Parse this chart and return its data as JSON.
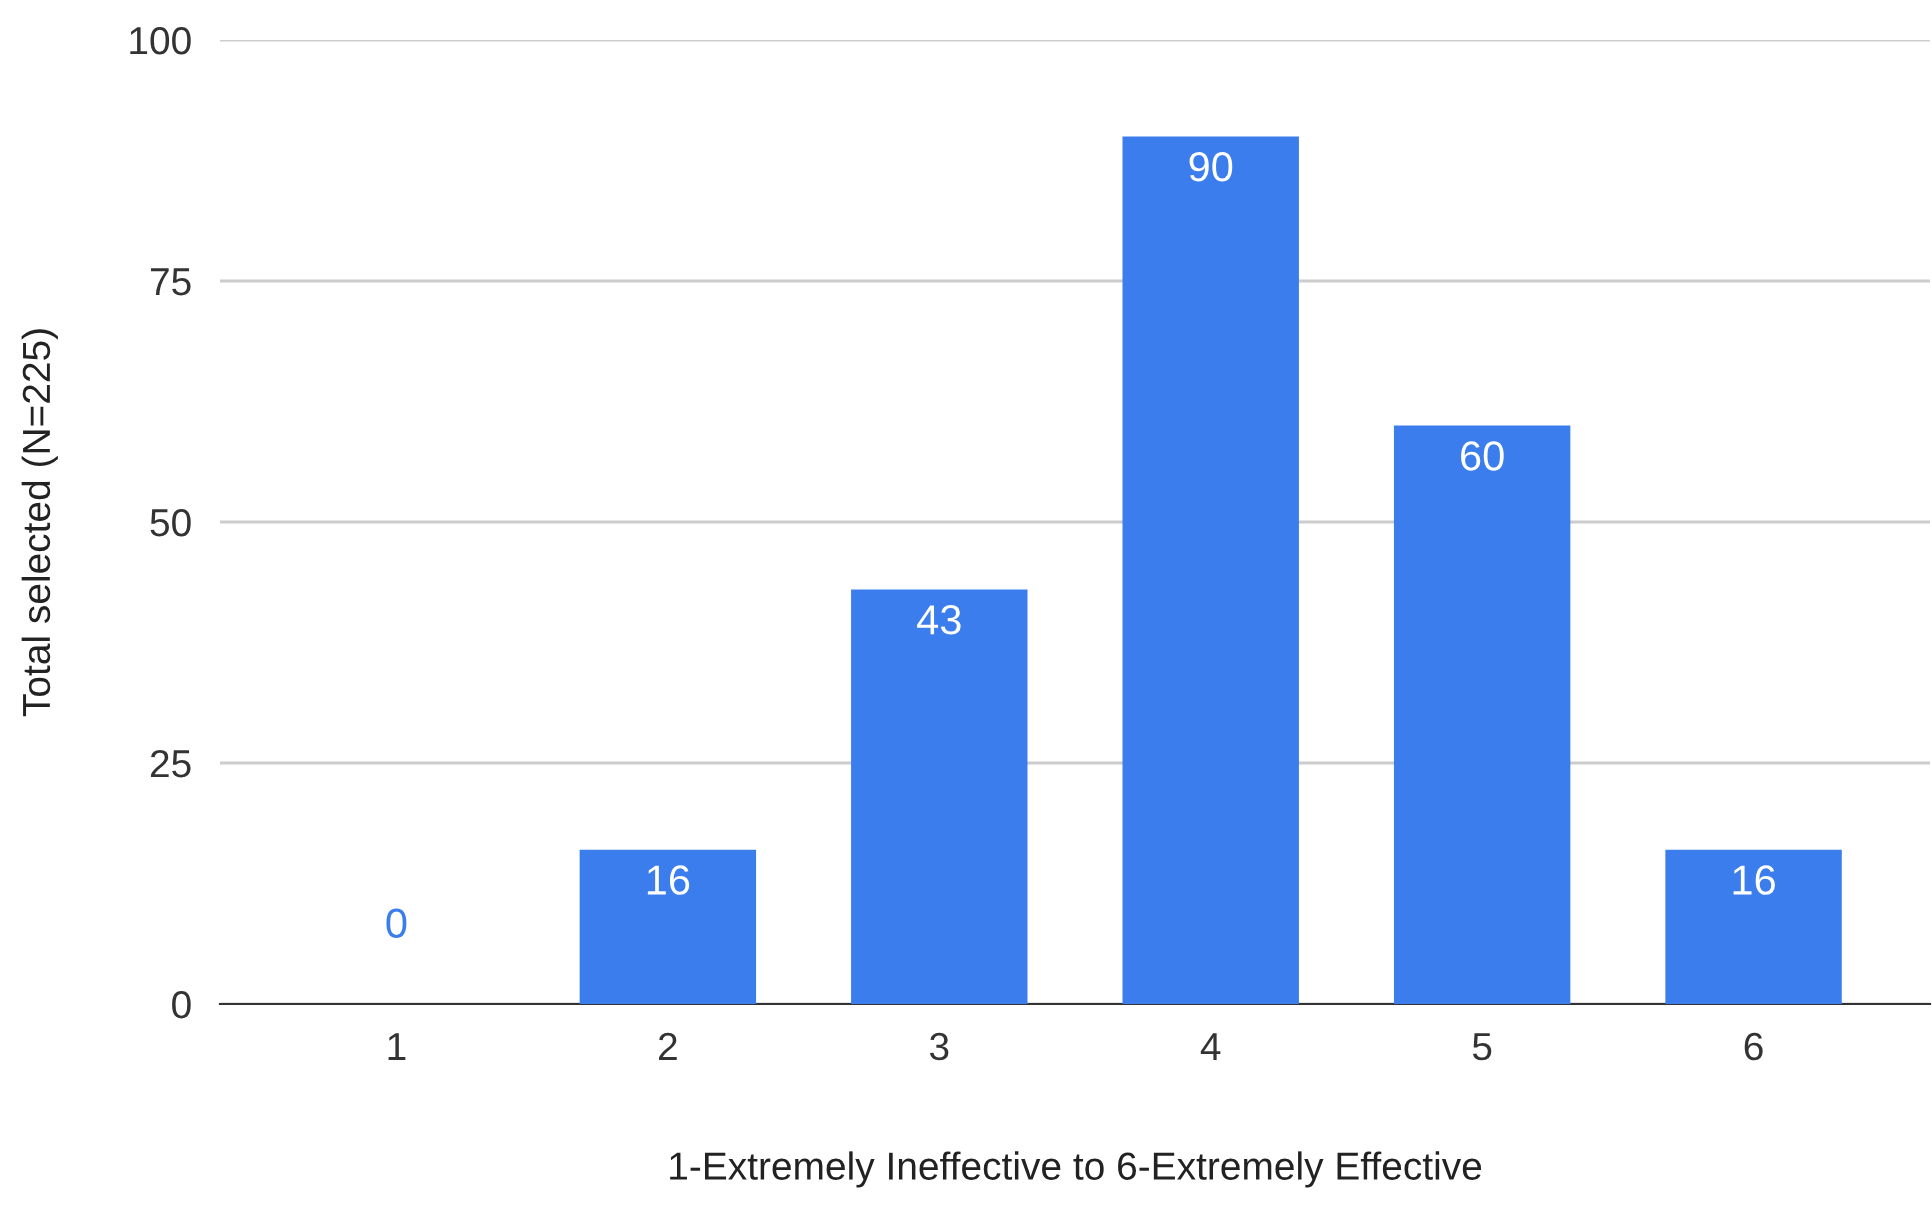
{
  "chart_data": {
    "type": "bar",
    "xlabel": "1-Extremely Ineffective to 6-Extremely Effective",
    "ylabel": "Total selected (N=225)",
    "categories": [
      "1",
      "2",
      "3",
      "4",
      "5",
      "6"
    ],
    "values": [
      0,
      16,
      43,
      90,
      60,
      16
    ],
    "color": "#3b7ded",
    "ylim": [
      0,
      100
    ],
    "yticks": [
      0,
      25,
      50,
      75,
      100
    ],
    "grid": "y",
    "data_labels": true
  }
}
